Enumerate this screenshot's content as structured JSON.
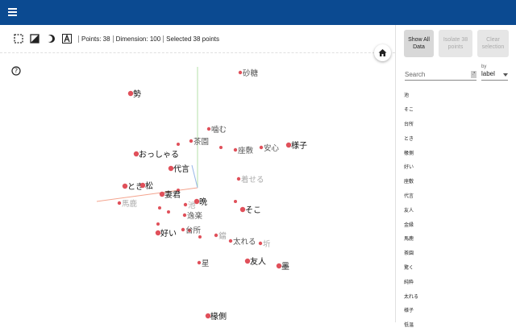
{
  "toolbar": {
    "points": "Points: 38",
    "dimension": "Dimension: 100",
    "selected": "Selected 38 points"
  },
  "panel": {
    "show_all": "Show All Data",
    "isolate": "Isolate 38 points",
    "clear": "Clear selection",
    "search_placeholder": "Search",
    "search_toggle": ".*",
    "by": "by",
    "by_value": "label",
    "list": [
      "池",
      "そこ",
      "台所",
      "とき",
      "椽側",
      "好い",
      "座敷",
      "代言",
      "友人",
      "金縁",
      "馬鹿",
      "茶園",
      "驚く",
      "純粋",
      "太れる",
      "様子",
      "低温"
    ]
  },
  "plot": {
    "points": [
      {
        "label": "砂糖",
        "shade": "mid"
      },
      {
        "label": "勢",
        "shade": "dark"
      },
      {
        "label": "噛む",
        "shade": "mid"
      },
      {
        "label": "茶園",
        "shade": "mid"
      },
      {
        "label": "座敷",
        "shade": "mid"
      },
      {
        "label": "安心",
        "shade": "mid"
      },
      {
        "label": "様子",
        "shade": "dark"
      },
      {
        "label": "おっしゃる",
        "shade": "dark"
      },
      {
        "label": "代言",
        "shade": "dark"
      },
      {
        "label": "着せる",
        "shade": "light"
      },
      {
        "label": "とき",
        "shade": "dark"
      },
      {
        "label": "松",
        "shade": "dark"
      },
      {
        "label": "妻君",
        "shade": "dark"
      },
      {
        "label": "馬鹿",
        "shade": "light"
      },
      {
        "label": "池",
        "shade": "light"
      },
      {
        "label": "晩",
        "shade": "dark"
      },
      {
        "label": "そこ",
        "shade": "dark"
      },
      {
        "label": "逸楽",
        "shade": "mid"
      },
      {
        "label": "好い",
        "shade": "dark"
      },
      {
        "label": "台所",
        "shade": "mid"
      },
      {
        "label": "鐺",
        "shade": "light"
      },
      {
        "label": "太れる",
        "shade": "mid"
      },
      {
        "label": "圻",
        "shade": "light"
      },
      {
        "label": "星",
        "shade": "mid"
      },
      {
        "label": "友人",
        "shade": "dark"
      },
      {
        "label": "墨",
        "shade": "dark"
      },
      {
        "label": "椽側",
        "shade": "dark"
      }
    ]
  }
}
